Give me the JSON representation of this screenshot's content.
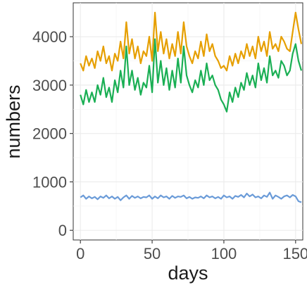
{
  "chart_data": {
    "type": "line",
    "xlabel": "days",
    "ylabel": "numbers",
    "xlim": [
      -5,
      155
    ],
    "ylim": [
      -200,
      4700
    ],
    "x_ticks": [
      0,
      50,
      100,
      150
    ],
    "y_ticks": [
      0,
      1000,
      2000,
      3000,
      4000
    ],
    "grid": true,
    "legend": "none",
    "series": [
      {
        "color": "#e69f00",
        "x": [
          0,
          2,
          4,
          6,
          8,
          10,
          12,
          14,
          16,
          18,
          20,
          22,
          24,
          26,
          28,
          30,
          32,
          34,
          36,
          38,
          40,
          42,
          44,
          46,
          48,
          50,
          52,
          54,
          56,
          58,
          60,
          62,
          64,
          66,
          68,
          70,
          72,
          74,
          76,
          78,
          80,
          82,
          84,
          86,
          88,
          90,
          92,
          94,
          96,
          98,
          100,
          102,
          104,
          106,
          108,
          110,
          112,
          114,
          116,
          118,
          120,
          122,
          124,
          126,
          128,
          130,
          132,
          134,
          136,
          138,
          140,
          142,
          144,
          146,
          148,
          150,
          152,
          154
        ],
        "values": [
          3450,
          3300,
          3600,
          3400,
          3550,
          3350,
          3700,
          3500,
          3800,
          3450,
          3600,
          3300,
          3650,
          3500,
          3900,
          3550,
          4300,
          3650,
          3950,
          3550,
          3800,
          3450,
          3700,
          3600,
          4000,
          3500,
          4500,
          3700,
          4100,
          3650,
          3950,
          3550,
          3850,
          3600,
          4100,
          3650,
          4300,
          3800,
          3600,
          3450,
          3700,
          3550,
          3900,
          3600,
          4050,
          3700,
          3850,
          3600,
          3500,
          3350,
          3400,
          3300,
          3600,
          3400,
          3650,
          3450,
          3700,
          3550,
          3850,
          3600,
          3800,
          3550,
          4000,
          3700,
          3900,
          3600,
          4100,
          3750,
          3850,
          3700,
          4000,
          3900,
          3750,
          3700,
          4100,
          4500,
          4150,
          3850
        ]
      },
      {
        "color": "#1aaf54",
        "x": [
          0,
          2,
          4,
          6,
          8,
          10,
          12,
          14,
          16,
          18,
          20,
          22,
          24,
          26,
          28,
          30,
          32,
          34,
          36,
          38,
          40,
          42,
          44,
          46,
          48,
          50,
          52,
          54,
          56,
          58,
          60,
          62,
          64,
          66,
          68,
          70,
          72,
          74,
          76,
          78,
          80,
          82,
          84,
          86,
          88,
          90,
          92,
          94,
          96,
          98,
          100,
          102,
          104,
          106,
          108,
          110,
          112,
          114,
          116,
          118,
          120,
          122,
          124,
          126,
          128,
          130,
          132,
          134,
          136,
          138,
          140,
          142,
          144,
          146,
          148,
          150,
          152,
          154
        ],
        "values": [
          2800,
          2600,
          2900,
          2650,
          2850,
          2650,
          3000,
          2800,
          3150,
          2750,
          2950,
          2650,
          3100,
          2850,
          3300,
          2950,
          3800,
          3000,
          3300,
          2900,
          3150,
          2800,
          3050,
          2950,
          3400,
          2850,
          3950,
          3050,
          3500,
          3000,
          3350,
          2900,
          3300,
          2950,
          3550,
          3050,
          3800,
          3200,
          3000,
          2850,
          3100,
          2950,
          3300,
          3000,
          3450,
          3100,
          3200,
          3000,
          2900,
          2700,
          2600,
          2450,
          2850,
          2650,
          2950,
          2750,
          3050,
          2900,
          3250,
          3000,
          3200,
          2950,
          3450,
          3100,
          3350,
          3050,
          3600,
          3200,
          3300,
          3150,
          3500,
          3400,
          3200,
          3300,
          3650,
          3850,
          3500,
          3300
        ]
      },
      {
        "color": "#6a9bd8",
        "x": [
          0,
          2,
          4,
          6,
          8,
          10,
          12,
          14,
          16,
          18,
          20,
          22,
          24,
          26,
          28,
          30,
          32,
          34,
          36,
          38,
          40,
          42,
          44,
          46,
          48,
          50,
          52,
          54,
          56,
          58,
          60,
          62,
          64,
          66,
          68,
          70,
          72,
          74,
          76,
          78,
          80,
          82,
          84,
          86,
          88,
          90,
          92,
          94,
          96,
          98,
          100,
          102,
          104,
          106,
          108,
          110,
          112,
          114,
          116,
          118,
          120,
          122,
          124,
          126,
          128,
          130,
          132,
          134,
          136,
          138,
          140,
          142,
          144,
          146,
          148,
          150,
          152,
          154
        ],
        "values": [
          680,
          720,
          650,
          700,
          660,
          690,
          640,
          700,
          670,
          720,
          660,
          700,
          650,
          690,
          620,
          680,
          720,
          650,
          710,
          670,
          700,
          660,
          690,
          680,
          720,
          650,
          700,
          660,
          720,
          680,
          700,
          650,
          710,
          670,
          700,
          690,
          720,
          660,
          690,
          650,
          680,
          670,
          700,
          660,
          720,
          680,
          700,
          660,
          690,
          650,
          720,
          680,
          700,
          650,
          710,
          690,
          730,
          680,
          760,
          700,
          740,
          680,
          700,
          660,
          720,
          690,
          780,
          650,
          720,
          690,
          650,
          700,
          720,
          680,
          730,
          700,
          600,
          580
        ]
      }
    ]
  }
}
